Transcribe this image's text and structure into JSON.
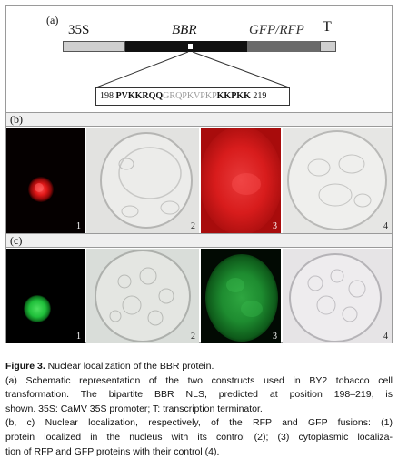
{
  "panel_a": {
    "label": "(a)",
    "label_35s": "35S",
    "label_bbr": "BBR",
    "label_gfp_rfp": "GFP/RFP",
    "label_t": "T",
    "sequence": {
      "start": "198",
      "part1": "PVKKRQQ",
      "part2": "GRQPKVPKP",
      "part3": "KKPKK",
      "end": "219"
    }
  },
  "panel_b": {
    "label": "(b)",
    "image_numbers": [
      "1",
      "2",
      "3",
      "4"
    ]
  },
  "panel_c": {
    "label": "(c)",
    "image_numbers": [
      "1",
      "2",
      "3",
      "4"
    ]
  },
  "colors": {
    "rfp_red": "#d81c1c",
    "gfp_green": "#1fbf3a",
    "bbr_black": "#111111",
    "gfp_rfp_segment": "#6a6a6a"
  },
  "caption": {
    "title_bold": "Figure 3.",
    "title_rest": " Nuclear localization of the BBR protein.",
    "line2": "(a) Schematic representation of the two constructs used in BY2 tobacco cell",
    "line3": "transformation. The bipartite BBR NLS, predicted at position 198–219, is",
    "line4": "shown. 35S: CaMV 35S promoter; T: transcription terminator.",
    "line5": "(b, c) Nuclear localization, respectively, of the RFP and GFP fusions: (1)",
    "line6": "protein localized in the nucleus with its control (2); (3) cytoplasmic localiza-",
    "line7": "tion of RFP and GFP proteins with their control (4)."
  }
}
